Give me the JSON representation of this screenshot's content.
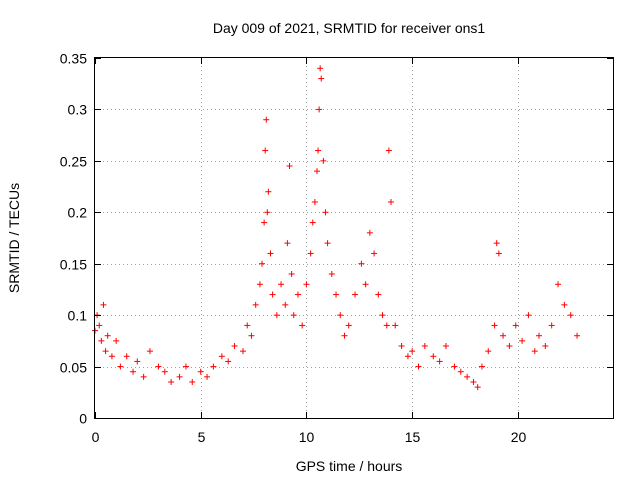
{
  "chart_data": {
    "type": "scatter",
    "title": "Day 009 of 2021, SRMTID for receiver ons1",
    "xlabel": "GPS time / hours",
    "ylabel": "SRMTID / TECUs",
    "xlim": [
      0,
      24.5
    ],
    "ylim": [
      0,
      0.35
    ],
    "xticks": [
      0,
      5,
      10,
      15,
      20
    ],
    "xtick_labels": [
      "0",
      "5",
      "10",
      "15",
      "20"
    ],
    "yticks": [
      0,
      0.05,
      0.1,
      0.15,
      0.2,
      0.25,
      0.3,
      0.35
    ],
    "ytick_labels": [
      "0",
      "0.05",
      "0.1",
      "0.15",
      "0.2",
      "0.25",
      "0.3",
      "0.35"
    ],
    "grid": true,
    "marker": "+",
    "color": "#ff0000",
    "series": [
      {
        "name": "SRMTID",
        "x": [
          0.0,
          0.1,
          0.2,
          0.3,
          0.4,
          0.5,
          0.6,
          0.8,
          1.0,
          1.2,
          1.5,
          1.8,
          2.0,
          2.3,
          2.6,
          3.0,
          3.3,
          3.6,
          4.0,
          4.3,
          4.6,
          5.0,
          5.3,
          5.6,
          6.0,
          6.3,
          6.6,
          7.0,
          7.2,
          7.4,
          7.6,
          7.8,
          7.9,
          8.0,
          8.05,
          8.1,
          8.15,
          8.2,
          8.3,
          8.4,
          8.6,
          8.8,
          9.0,
          9.1,
          9.2,
          9.3,
          9.4,
          9.6,
          9.8,
          10.0,
          10.2,
          10.3,
          10.4,
          10.5,
          10.55,
          10.6,
          10.65,
          10.7,
          10.8,
          10.9,
          11.0,
          11.2,
          11.4,
          11.6,
          11.8,
          12.0,
          12.3,
          12.6,
          12.8,
          13.0,
          13.2,
          13.4,
          13.6,
          13.8,
          13.9,
          14.0,
          14.2,
          14.5,
          14.8,
          15.0,
          15.3,
          15.6,
          16.0,
          16.3,
          16.6,
          17.0,
          17.3,
          17.6,
          17.9,
          18.1,
          18.3,
          18.6,
          18.9,
          19.0,
          19.1,
          19.3,
          19.6,
          19.9,
          20.2,
          20.5,
          20.8,
          21.0,
          21.3,
          21.6,
          21.9,
          22.2,
          22.5,
          22.8
        ],
        "y": [
          0.085,
          0.1,
          0.09,
          0.075,
          0.11,
          0.065,
          0.08,
          0.06,
          0.075,
          0.05,
          0.06,
          0.045,
          0.055,
          0.04,
          0.065,
          0.05,
          0.045,
          0.035,
          0.04,
          0.05,
          0.035,
          0.045,
          0.04,
          0.05,
          0.06,
          0.055,
          0.07,
          0.065,
          0.09,
          0.08,
          0.11,
          0.13,
          0.15,
          0.19,
          0.26,
          0.29,
          0.2,
          0.22,
          0.16,
          0.12,
          0.1,
          0.13,
          0.11,
          0.17,
          0.245,
          0.14,
          0.1,
          0.12,
          0.09,
          0.13,
          0.16,
          0.19,
          0.21,
          0.24,
          0.26,
          0.3,
          0.34,
          0.33,
          0.25,
          0.2,
          0.17,
          0.14,
          0.12,
          0.1,
          0.08,
          0.09,
          0.12,
          0.15,
          0.13,
          0.18,
          0.16,
          0.12,
          0.1,
          0.09,
          0.26,
          0.21,
          0.09,
          0.07,
          0.06,
          0.065,
          0.05,
          0.07,
          0.06,
          0.055,
          0.07,
          0.05,
          0.045,
          0.04,
          0.035,
          0.03,
          0.05,
          0.065,
          0.09,
          0.17,
          0.16,
          0.08,
          0.07,
          0.09,
          0.075,
          0.1,
          0.065,
          0.08,
          0.07,
          0.09,
          0.13,
          0.11,
          0.1,
          0.08
        ]
      }
    ]
  }
}
